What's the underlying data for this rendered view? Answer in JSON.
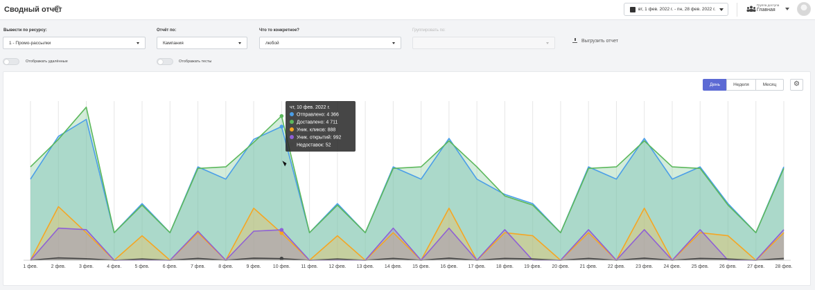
{
  "header": {
    "title": "Сводный отчёт",
    "help_icon": "question-circle-icon",
    "date_range": "вт, 1 фев. 2022 г. - пн, 28 фев. 2022 г.",
    "calendar_icon": "calendar-icon",
    "access_group_label": "Группа доступа",
    "access_group_value": "Главная",
    "group_icon": "users-icon"
  },
  "filters": {
    "resource_label": "Вывести по ресурсу:",
    "resource_value": "1 - Промо-рассылки",
    "report_by_label": "Отчёт по:",
    "report_by_value": "Кампания",
    "what_label": "Что то конкретное?",
    "what_value": "любой",
    "group_by_label": "Группировать по:",
    "group_by_value": "",
    "export_label": "Выгрузить отчет",
    "show_deleted_label": "Отображать удалённые",
    "show_deleted": false,
    "show_tests_label": "Отображать тесты",
    "show_tests": false
  },
  "period": {
    "day": "День",
    "week": "Неделя",
    "month": "Месяц",
    "active": "day",
    "settings_icon": "gear-icon"
  },
  "tooltip": {
    "title": "чт, 10 фев. 2022 г.",
    "rows": [
      {
        "text": "Отправлено: 4 366",
        "color": "#4a9ee8"
      },
      {
        "text": "Доставлено: 4 711",
        "color": "#5cb85c"
      },
      {
        "text": "Уник. кликов: 888",
        "color": "#f5a623"
      },
      {
        "text": "Уник. открытий: 992",
        "color": "#8e5fd6"
      },
      {
        "text": "Недоставок: 52",
        "color": "#444444"
      }
    ]
  },
  "chart_data": {
    "type": "area",
    "x": [
      "1 фев.",
      "2 фев.",
      "3 фев.",
      "4 фев.",
      "5 фев.",
      "6 фев.",
      "7 фев.",
      "8 фев.",
      "9 фев.",
      "10 фев.",
      "11 фев.",
      "12 фев.",
      "13 фев.",
      "14 фев.",
      "15 фев.",
      "16 фев.",
      "17 фев.",
      "18 фев.",
      "19 фев.",
      "20 фев.",
      "21 фев.",
      "22 фев.",
      "23 фев.",
      "24 фев.",
      "25 фев.",
      "26 фев.",
      "27 фев.",
      "28 фев."
    ],
    "ylim": [
      0,
      5200
    ],
    "grid": "vertical",
    "series": [
      {
        "name": "Отправлено",
        "color": "#4a9ee8",
        "values": [
          2650,
          4050,
          4600,
          900,
          1850,
          900,
          3050,
          2650,
          3950,
          4366,
          900,
          1850,
          900,
          3050,
          2650,
          3980,
          2650,
          2150,
          1850,
          900,
          3050,
          2650,
          3980,
          2650,
          3050,
          1850,
          900,
          3050
        ]
      },
      {
        "name": "Доставлено",
        "color": "#5cb85c",
        "values": [
          3050,
          3950,
          5000,
          900,
          1800,
          900,
          3000,
          3050,
          3850,
          4711,
          900,
          1800,
          900,
          3000,
          3050,
          3900,
          3050,
          2100,
          1800,
          900,
          3000,
          3050,
          3900,
          3050,
          3000,
          1800,
          900,
          3000
        ]
      },
      {
        "name": "Уник. кликов",
        "color": "#f5a623",
        "values": [
          0,
          1750,
          900,
          0,
          800,
          0,
          900,
          0,
          1700,
          888,
          0,
          800,
          0,
          900,
          0,
          1700,
          0,
          900,
          800,
          0,
          900,
          0,
          1700,
          0,
          900,
          800,
          0,
          900
        ]
      },
      {
        "name": "Уник. открытий",
        "color": "#8e5fd6",
        "values": [
          0,
          1050,
          1000,
          0,
          0,
          0,
          950,
          0,
          950,
          992,
          0,
          0,
          0,
          1050,
          0,
          1050,
          0,
          1000,
          0,
          0,
          1000,
          0,
          1000,
          0,
          1000,
          0,
          0,
          1000
        ]
      },
      {
        "name": "Недоставок",
        "color": "#444444",
        "values": [
          0,
          80,
          50,
          0,
          40,
          0,
          60,
          0,
          70,
          52,
          0,
          40,
          0,
          60,
          0,
          70,
          0,
          60,
          40,
          0,
          60,
          0,
          70,
          0,
          60,
          40,
          0,
          60
        ]
      }
    ]
  }
}
